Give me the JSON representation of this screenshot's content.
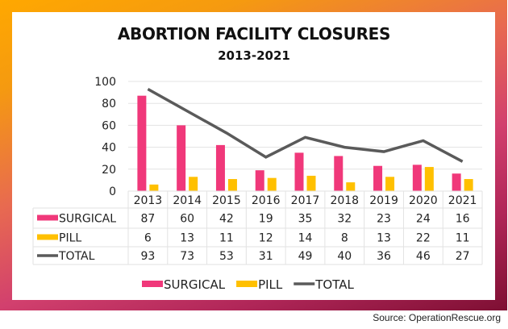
{
  "chart_data": {
    "type": "bar",
    "title": "ABORTION FACILITY CLOSURES",
    "subtitle": "2013-2021",
    "categories": [
      "2013",
      "2014",
      "2015",
      "2016",
      "2017",
      "2018",
      "2019",
      "2020",
      "2021"
    ],
    "series": [
      {
        "name": "SURGICAL",
        "type": "bar",
        "color": "#f0387a",
        "values": [
          87,
          60,
          42,
          19,
          35,
          32,
          23,
          24,
          16
        ]
      },
      {
        "name": "PILL",
        "type": "bar",
        "color": "#ffc000",
        "values": [
          6,
          13,
          11,
          12,
          14,
          8,
          13,
          22,
          11
        ]
      },
      {
        "name": "TOTAL",
        "type": "line",
        "color": "#5a5a5a",
        "values": [
          93,
          73,
          53,
          31,
          49,
          40,
          36,
          46,
          27
        ]
      }
    ],
    "yticks": [
      0,
      20,
      40,
      60,
      80,
      100
    ],
    "ylim": [
      0,
      100
    ],
    "xlabel": "",
    "ylabel": "",
    "grid": true,
    "data_table": true,
    "legend": "bottom"
  },
  "source": "Source: OperationRescue.org"
}
